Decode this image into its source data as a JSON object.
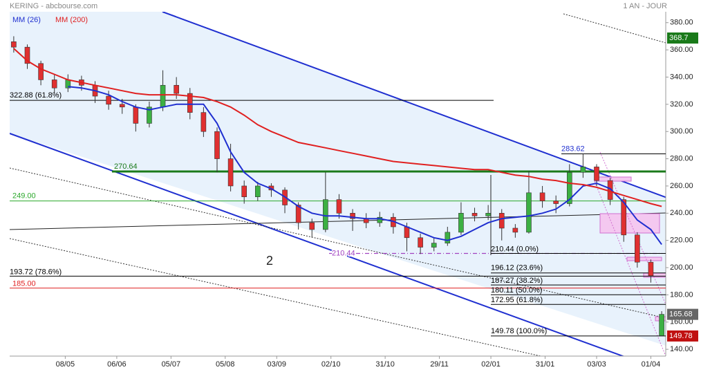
{
  "chart_data": {
    "type": "candlestick",
    "title": "KERING - abcbourse.com",
    "subtitle": "1 AN - JOUR",
    "x": [
      0,
      5,
      10,
      15,
      20,
      25,
      30,
      35,
      40,
      45,
      50,
      55,
      60,
      65,
      70,
      75,
      80,
      85,
      90,
      95,
      100,
      105,
      110,
      115,
      120,
      125,
      130,
      135,
      140,
      145,
      150,
      155,
      160,
      165,
      170,
      175,
      180,
      185,
      190,
      195,
      200,
      205,
      210,
      215,
      220,
      225,
      230,
      235,
      239
    ],
    "open": [
      366,
      362,
      350,
      338,
      332,
      338,
      334,
      326,
      320,
      318,
      306,
      318,
      334,
      328,
      314,
      300,
      280,
      260,
      252,
      260,
      257,
      246,
      233,
      228,
      250,
      240,
      236,
      233,
      237,
      230,
      222,
      215,
      218,
      226,
      240,
      238,
      240,
      229,
      226,
      255,
      249,
      247,
      270,
      274,
      264,
      250,
      224,
      204,
      150
    ],
    "high": [
      370,
      364,
      352,
      342,
      342,
      341,
      337,
      330,
      324,
      320,
      322,
      345,
      340,
      332,
      318,
      303,
      291,
      264,
      263,
      262,
      259,
      248,
      236,
      270,
      254,
      243,
      240,
      241,
      240,
      233,
      225,
      222,
      230,
      248,
      244,
      246,
      243,
      232,
      271,
      260,
      253,
      276,
      283.62,
      276,
      266,
      252,
      226,
      206,
      168
    ],
    "low": [
      358,
      346,
      334,
      328,
      329,
      330,
      321,
      316,
      313,
      300,
      303,
      315,
      324,
      309,
      296,
      270,
      256,
      247,
      249,
      252,
      240,
      228,
      222,
      226,
      236,
      227,
      229,
      230,
      225,
      212,
      210,
      212,
      216,
      224,
      234,
      235,
      220,
      222,
      225,
      244,
      240,
      245,
      266,
      260,
      246,
      219,
      200,
      189,
      149.78
    ],
    "close": [
      362,
      350,
      338,
      332,
      338,
      334,
      326,
      320,
      318,
      306,
      318,
      334,
      328,
      314,
      300,
      280,
      260,
      252,
      260,
      257,
      246,
      233,
      228,
      250,
      240,
      236,
      233,
      237,
      230,
      222,
      215,
      218,
      226,
      240,
      238,
      240,
      229,
      226,
      255,
      249,
      247,
      270,
      274,
      264,
      250,
      224,
      204,
      194,
      165.68
    ],
    "up_color": "#3cb043",
    "down_color": "#e03030",
    "series": [
      {
        "name": "MM (26)",
        "color": "#1f2fd0",
        "values": [
          null,
          null,
          null,
          null,
          333,
          332,
          330,
          327,
          322,
          318,
          316,
          318,
          320,
          320,
          320,
          306,
          285,
          270,
          262,
          258,
          252,
          245,
          240,
          238,
          238,
          237,
          236,
          236,
          234,
          230,
          226,
          222,
          220,
          223,
          228,
          233,
          236,
          237,
          238,
          240,
          243,
          250,
          260,
          262,
          258,
          248,
          235,
          228,
          217
        ]
      },
      {
        "name": "MM (200)",
        "color": "#e02020",
        "values": [
          361,
          352,
          346,
          342,
          338,
          336,
          334,
          332,
          330,
          328,
          327,
          327,
          327,
          326,
          325,
          322,
          318,
          312,
          305,
          300,
          296,
          292,
          290,
          288,
          286,
          284,
          282,
          280,
          278,
          277,
          276,
          275,
          274,
          273,
          272,
          272,
          270,
          268,
          267,
          265,
          264,
          262,
          261,
          259,
          256,
          253,
          250,
          247,
          245
        ]
      }
    ],
    "xlim": [
      -1.5,
      240.5
    ],
    "xticks": [
      {
        "value": 19,
        "label": "08/05"
      },
      {
        "value": 38,
        "label": "06/06"
      },
      {
        "value": 58,
        "label": "05/07"
      },
      {
        "value": 78,
        "label": "05/08"
      },
      {
        "value": 97,
        "label": "03/09"
      },
      {
        "value": 117,
        "label": "02/10"
      },
      {
        "value": 137,
        "label": "31/10"
      },
      {
        "value": 157,
        "label": "29/11"
      },
      {
        "value": 176,
        "label": "02/01"
      },
      {
        "value": 196,
        "label": "31/01"
      },
      {
        "value": 215,
        "label": "03/03"
      },
      {
        "value": 235,
        "label": "01/04"
      }
    ],
    "ylim": [
      135,
      388
    ],
    "yticks": [
      {
        "value": 140,
        "label": "140.00"
      },
      {
        "value": 160,
        "label": "160.00"
      },
      {
        "value": 180,
        "label": "180.00"
      },
      {
        "value": 200,
        "label": "200.00"
      },
      {
        "value": 220,
        "label": "220.00"
      },
      {
        "value": 240,
        "label": "240.00"
      },
      {
        "value": 260,
        "label": "260.00"
      },
      {
        "value": 280,
        "label": "280.00"
      },
      {
        "value": 300,
        "label": "300.00"
      },
      {
        "value": 320,
        "label": "320.00"
      },
      {
        "value": 340,
        "label": "340.00"
      },
      {
        "value": 360,
        "label": "360.00"
      },
      {
        "value": 380,
        "label": "380.00"
      }
    ],
    "levels": [
      {
        "value": 322.88,
        "label": "322.88 (61.8%)",
        "color": "#000000"
      },
      {
        "value": 270.64,
        "label": "270.64",
        "color": "#1a7a1a"
      },
      {
        "value": 249,
        "label": "249.00",
        "color": "#2aa82a"
      },
      {
        "value": 210.44,
        "label": "210.44",
        "color": "#a040c0"
      },
      {
        "value": 210.44,
        "label": "210.44  (0.0%)",
        "color": "#000000"
      },
      {
        "value": 196.12,
        "label": "196.12  (23.6%)",
        "color": "#000000"
      },
      {
        "value": 187.27,
        "label": "187.27  (38.2%)",
        "color": "#000000"
      },
      {
        "value": 180.11,
        "label": "180.11  (50.0%)",
        "color": "#000000"
      },
      {
        "value": 172.95,
        "label": "172.95  (61.8%)",
        "color": "#000000"
      },
      {
        "value": 149.78,
        "label": "149.78  (100.0%)",
        "color": "#000000"
      },
      {
        "value": 193.72,
        "label": "193.72  (78.6%)",
        "color": "#000000"
      },
      {
        "value": 185,
        "label": "185.00",
        "color": "#e02020"
      },
      {
        "value": 283.62,
        "label": "283.62",
        "color": "#000000"
      }
    ],
    "annotation": "2",
    "price_tags": [
      {
        "value": 368.7,
        "color": "#1a7a1a"
      },
      {
        "value": 165.68,
        "color": "#666666"
      },
      {
        "value": 149.78,
        "color": "#c01010"
      }
    ]
  }
}
